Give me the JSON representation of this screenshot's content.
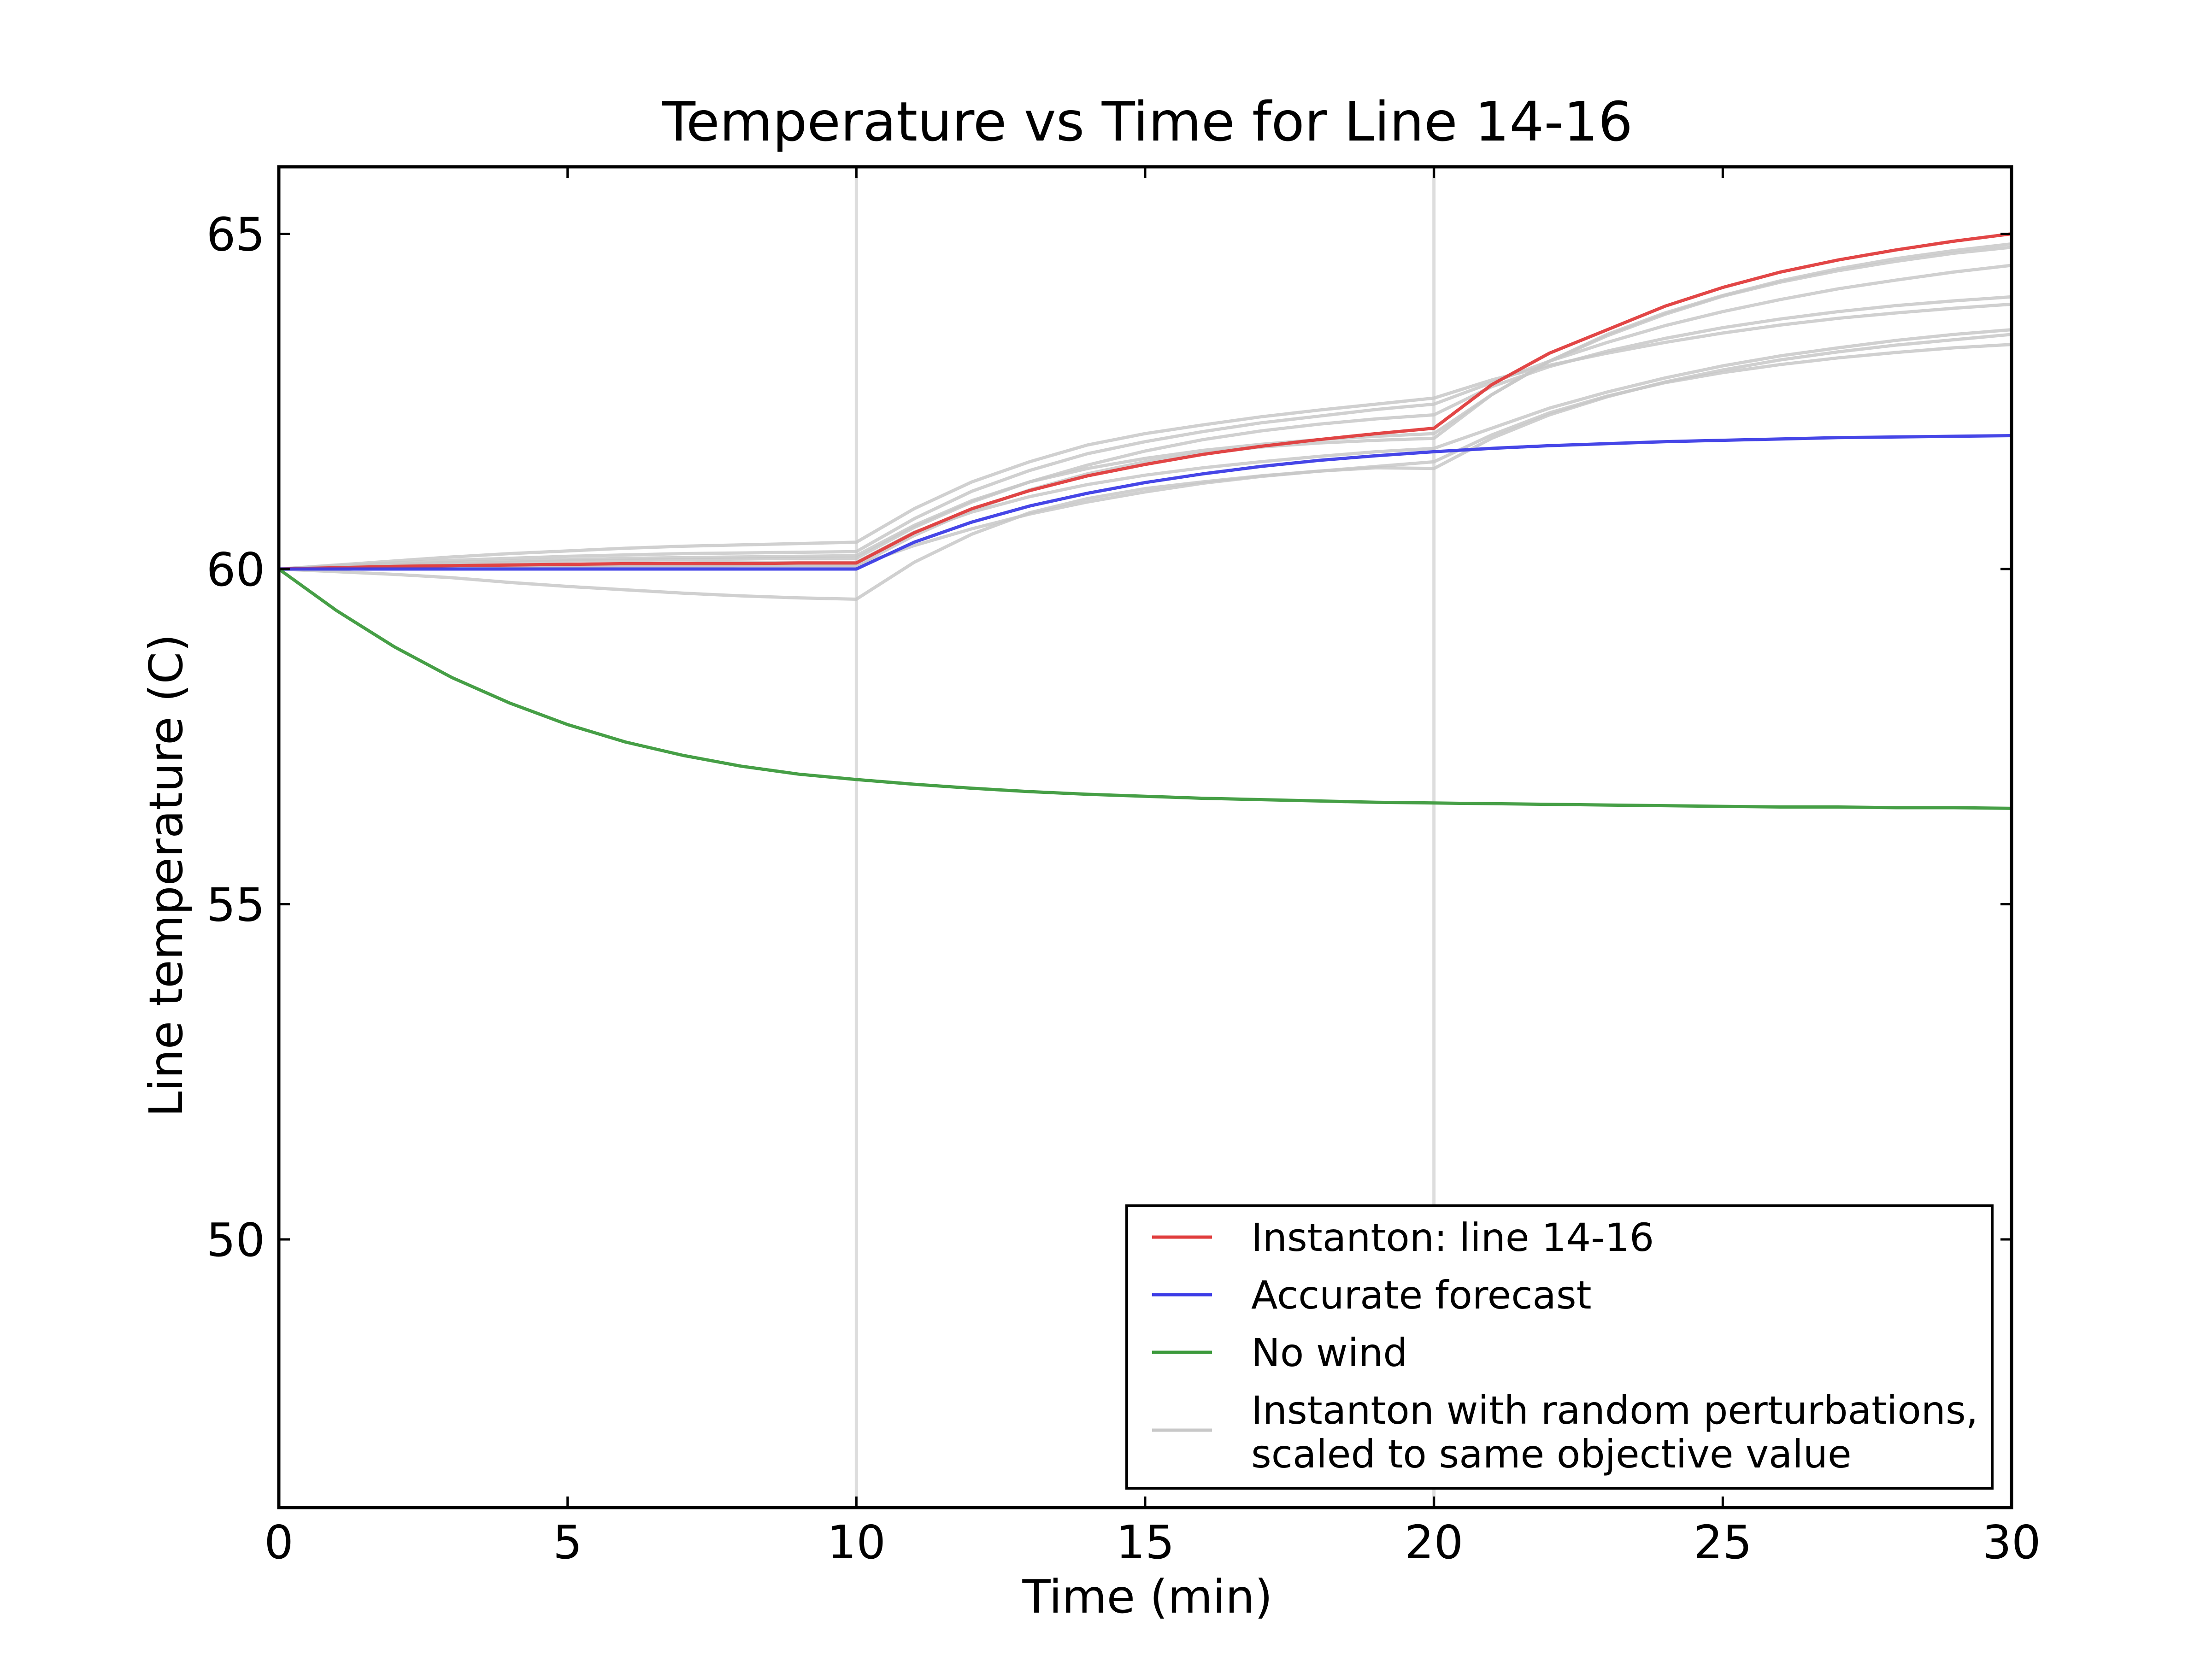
{
  "chart_data": {
    "type": "line",
    "title": "Temperature vs Time for Line 14-16",
    "xlabel": "Time (min)",
    "ylabel": "Line temperature (C)",
    "xlim": [
      0,
      30
    ],
    "ylim": [
      46,
      66
    ],
    "xticks": [
      0,
      5,
      10,
      15,
      20,
      25,
      30
    ],
    "yticks": [
      50,
      55,
      60,
      65
    ],
    "vlines": [
      10,
      20
    ],
    "vline_color": "#dddddd",
    "grid": false,
    "legend_position": "lower-right",
    "legend": [
      {
        "label": "Instanton: line 14-16",
        "color": "#e03c3c"
      },
      {
        "label": "Accurate forecast",
        "color": "#3c3ce6"
      },
      {
        "label": "No wind",
        "color": "#3c9a3c"
      },
      {
        "label": "Instanton with random perturbations,",
        "label2": "scaled to same objective value",
        "color": "#c8c8c8"
      }
    ],
    "x": [
      0,
      1,
      2,
      3,
      4,
      5,
      6,
      7,
      8,
      9,
      10,
      11,
      12,
      13,
      14,
      15,
      16,
      17,
      18,
      19,
      20,
      21,
      22,
      23,
      24,
      25,
      26,
      27,
      28,
      29,
      30
    ],
    "series": [
      {
        "name": "Instanton: line 14-16",
        "color": "#e03c3c",
        "values": [
          60.0,
          60.02,
          60.04,
          60.05,
          60.06,
          60.07,
          60.08,
          60.08,
          60.08,
          60.09,
          60.09,
          60.54,
          60.9,
          61.17,
          61.39,
          61.56,
          61.71,
          61.83,
          61.93,
          62.02,
          62.1,
          62.75,
          63.22,
          63.57,
          63.92,
          64.2,
          64.43,
          64.61,
          64.76,
          64.89,
          65.0
        ]
      },
      {
        "name": "Accurate forecast",
        "color": "#3c3ce6",
        "values": [
          60.0,
          60.0,
          60.0,
          60.0,
          60.0,
          60.0,
          60.0,
          60.0,
          60.0,
          60.0,
          60.0,
          60.4,
          60.7,
          60.94,
          61.13,
          61.29,
          61.42,
          61.53,
          61.62,
          61.69,
          61.75,
          61.8,
          61.84,
          61.87,
          61.9,
          61.92,
          61.94,
          61.96,
          61.97,
          61.98,
          61.99
        ]
      },
      {
        "name": "No wind",
        "color": "#3c9a3c",
        "values": [
          60.0,
          59.38,
          58.84,
          58.38,
          58.0,
          57.68,
          57.42,
          57.22,
          57.06,
          56.94,
          56.86,
          56.79,
          56.73,
          56.68,
          56.64,
          56.61,
          56.58,
          56.56,
          56.54,
          56.52,
          56.51,
          56.5,
          56.49,
          56.48,
          56.47,
          56.46,
          56.45,
          56.45,
          56.44,
          56.44,
          56.43
        ]
      },
      {
        "color": "#c8c8c8",
        "values": [
          60.0,
          60.06,
          60.12,
          60.18,
          60.23,
          60.27,
          60.31,
          60.34,
          60.36,
          60.38,
          60.4,
          60.9,
          61.3,
          61.6,
          61.85,
          62.02,
          62.15,
          62.27,
          62.37,
          62.46,
          62.55,
          62.82,
          63.04,
          63.22,
          63.38,
          63.52,
          63.64,
          63.74,
          63.82,
          63.89,
          63.95
        ]
      },
      {
        "color": "#c8c8c8",
        "values": [
          60.0,
          59.96,
          59.92,
          59.87,
          59.8,
          59.74,
          59.69,
          59.64,
          59.6,
          59.57,
          59.55,
          60.1,
          60.52,
          60.84,
          61.05,
          61.2,
          61.3,
          61.39,
          61.46,
          61.51,
          61.5,
          61.95,
          62.3,
          62.57,
          62.79,
          62.97,
          63.12,
          63.24,
          63.34,
          63.42,
          63.5
        ]
      },
      {
        "color": "#c8c8c8",
        "values": [
          60.0,
          60.05,
          60.09,
          60.13,
          60.16,
          60.19,
          60.21,
          60.23,
          60.24,
          60.25,
          60.26,
          60.75,
          61.16,
          61.47,
          61.72,
          61.9,
          62.05,
          62.18,
          62.28,
          62.38,
          62.46,
          62.78,
          63.1,
          63.38,
          63.63,
          63.84,
          64.02,
          64.18,
          64.31,
          64.43,
          64.53
        ]
      },
      {
        "color": "#c8c8c8",
        "values": [
          60.0,
          60.04,
          60.07,
          60.1,
          60.12,
          60.14,
          60.16,
          60.17,
          60.18,
          60.19,
          60.2,
          60.65,
          61.02,
          61.3,
          61.5,
          61.65,
          61.77,
          61.86,
          61.93,
          61.98,
          62.02,
          62.6,
          63.1,
          63.48,
          63.8,
          64.07,
          64.28,
          64.45,
          64.59,
          64.71,
          64.8
        ]
      },
      {
        "color": "#c8c8c8",
        "values": [
          60.0,
          60.02,
          60.04,
          60.05,
          60.06,
          60.07,
          60.08,
          60.09,
          60.1,
          60.1,
          60.1,
          60.55,
          60.85,
          61.08,
          61.26,
          61.4,
          61.51,
          61.6,
          61.68,
          61.75,
          61.8,
          62.1,
          62.4,
          62.64,
          62.85,
          63.03,
          63.18,
          63.3,
          63.41,
          63.5,
          63.57
        ]
      },
      {
        "color": "#c8c8c8",
        "values": [
          60.0,
          60.01,
          60.02,
          60.03,
          60.04,
          60.04,
          60.05,
          60.05,
          60.05,
          60.05,
          60.05,
          60.35,
          60.6,
          60.82,
          61.0,
          61.15,
          61.28,
          61.38,
          61.46,
          61.53,
          61.6,
          62.0,
          62.33,
          62.58,
          62.78,
          62.93,
          63.05,
          63.15,
          63.23,
          63.3,
          63.35
        ]
      },
      {
        "color": "#c8c8c8",
        "values": [
          60.0,
          60.03,
          60.06,
          60.08,
          60.1,
          60.12,
          60.13,
          60.14,
          60.15,
          60.16,
          60.16,
          60.62,
          61.0,
          61.3,
          61.55,
          61.76,
          61.93,
          62.06,
          62.16,
          62.24,
          62.3,
          62.72,
          63.02,
          63.25,
          63.44,
          63.6,
          63.73,
          63.84,
          63.93,
          64.0,
          64.06
        ]
      },
      {
        "color": "#c8c8c8",
        "values": [
          60.0,
          60.01,
          60.02,
          60.03,
          60.03,
          60.04,
          60.04,
          60.04,
          60.05,
          60.05,
          60.05,
          60.5,
          60.88,
          61.18,
          61.42,
          61.6,
          61.73,
          61.82,
          61.88,
          61.92,
          61.95,
          62.6,
          63.1,
          63.5,
          63.82,
          64.08,
          64.3,
          64.48,
          64.63,
          64.75,
          64.85
        ]
      }
    ]
  }
}
